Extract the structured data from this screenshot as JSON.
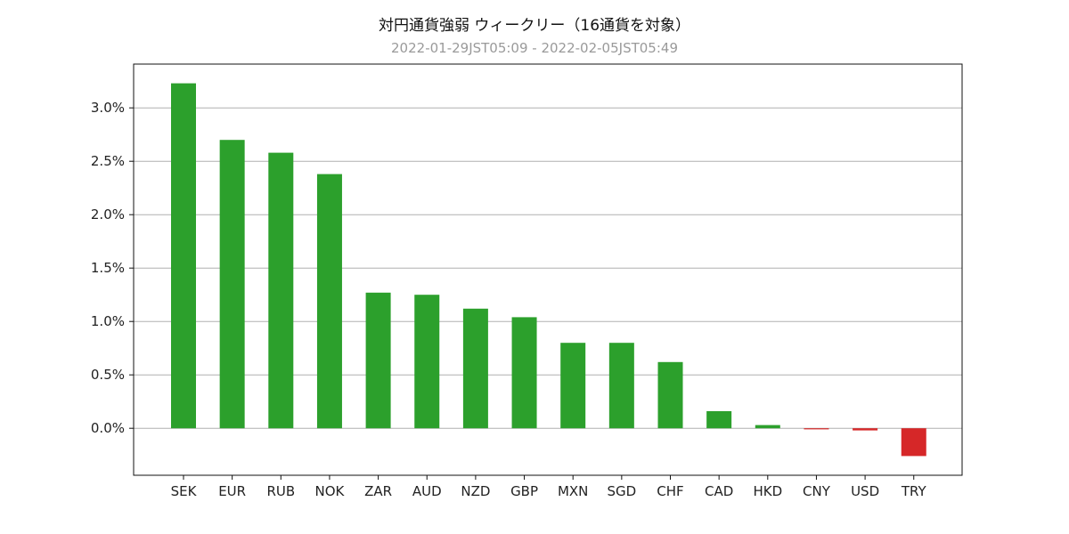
{
  "chart_data": {
    "type": "bar",
    "title": "対円通貨強弱 ウィークリー（16通貨を対象）",
    "subtitle": "2022-01-29JST05:09 - 2022-02-05JST05:49",
    "categories": [
      "SEK",
      "EUR",
      "RUB",
      "NOK",
      "ZAR",
      "AUD",
      "NZD",
      "GBP",
      "MXN",
      "SGD",
      "CHF",
      "CAD",
      "HKD",
      "CNY",
      "USD",
      "TRY"
    ],
    "values": [
      3.23,
      2.7,
      2.58,
      2.38,
      1.27,
      1.25,
      1.12,
      1.04,
      0.8,
      0.8,
      0.62,
      0.16,
      0.03,
      -0.01,
      -0.02,
      -0.26
    ],
    "ylim": [
      -0.44,
      3.41
    ],
    "yticks": [
      0.0,
      0.5,
      1.0,
      1.5,
      2.0,
      2.5,
      3.0
    ],
    "ytick_labels": [
      "0.0%",
      "0.5%",
      "1.0%",
      "1.5%",
      "2.0%",
      "2.5%",
      "3.0%"
    ],
    "grid": true,
    "legend": "none",
    "positive_color": "#2ca02c",
    "negative_color": "#d62728"
  }
}
